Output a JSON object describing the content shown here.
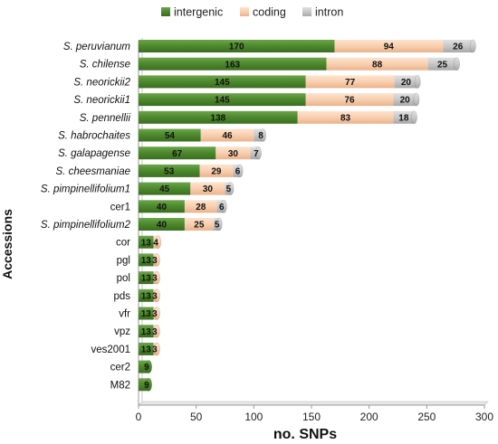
{
  "chart_data": {
    "type": "bar",
    "orientation": "horizontal",
    "stacked": true,
    "categories": [
      "S. peruvianum",
      "S. chilense",
      "S. neorickii2",
      "S. neorickii1",
      "S. pennellii",
      "S. habrochaites",
      "S. galapagense",
      "S. cheesmaniae",
      "S. pimpinellifolium1",
      "cer1",
      "S. pimpinellifolium2",
      "cor",
      "pgl",
      "pol",
      "pds",
      "vfr",
      "vpz",
      "ves2001",
      "cer2",
      "M82"
    ],
    "italic_categories": [
      "S. peruvianum",
      "S. chilense",
      "S. neorickii2",
      "S. neorickii1",
      "S. pennellii",
      "S. habrochaites",
      "S. galapagense",
      "S. cheesmaniae",
      "S. pimpinellifolium1",
      "S. pimpinellifolium2"
    ],
    "series": [
      {
        "name": "intergenic",
        "color": "#4e8a2e",
        "values": [
          170,
          163,
          145,
          145,
          138,
          54,
          67,
          53,
          45,
          40,
          40,
          13,
          13,
          13,
          13,
          13,
          13,
          13,
          9,
          9
        ]
      },
      {
        "name": "coding",
        "color": "#f9cfae",
        "values": [
          94,
          88,
          77,
          76,
          83,
          46,
          30,
          29,
          30,
          28,
          25,
          4,
          3,
          3,
          3,
          3,
          3,
          3,
          0,
          0
        ]
      },
      {
        "name": "intron",
        "color": "#c8c8c8",
        "values": [
          26,
          25,
          20,
          20,
          18,
          8,
          7,
          6,
          5,
          6,
          5,
          0,
          0,
          0,
          0,
          0,
          0,
          0,
          0,
          0
        ]
      }
    ],
    "xlabel": "no. SNPs",
    "ylabel": "Accessions",
    "xlim": [
      0,
      300
    ],
    "xticks": [
      0,
      50,
      100,
      150,
      200,
      250,
      300
    ],
    "grid": false,
    "legend_position": "top"
  }
}
